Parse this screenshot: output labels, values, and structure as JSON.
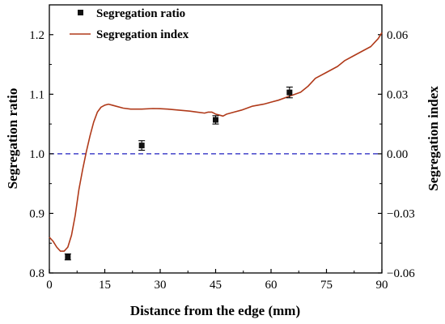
{
  "chart_data": {
    "type": "line",
    "xlabel": "Distance from the edge (mm)",
    "ylabel_left": "Segregation ratio",
    "ylabel_right": "Segregation index",
    "xlim": [
      0,
      90
    ],
    "ylim_left": [
      0.8,
      1.25
    ],
    "ylim_right": [
      -0.06,
      0.075
    ],
    "x_ticks": [
      0,
      15,
      30,
      45,
      60,
      75,
      90
    ],
    "x_tick_labels": [
      "0",
      "15",
      "30",
      "45",
      "60",
      "75",
      "90"
    ],
    "y_left_ticks": [
      0.8,
      0.9,
      1.0,
      1.1,
      1.2
    ],
    "y_left_tick_labels": [
      "0.8",
      "0.9",
      "1.0",
      "1.1",
      "1.2"
    ],
    "y_right_ticks": [
      -0.06,
      -0.03,
      0.0,
      0.03,
      0.06
    ],
    "y_right_tick_labels": [
      "−0.06",
      "−0.03",
      "0.00",
      "0.03",
      "0.06"
    ],
    "grid": false,
    "legend_position": "top-left",
    "reference_line": {
      "axis": "left",
      "value": 1.0,
      "style": "dashed",
      "color": "#1f1fbf"
    },
    "series": [
      {
        "name": "Segregation ratio",
        "kind": "scatter",
        "axis": "left",
        "color": "#111111",
        "marker": "square",
        "points": [
          {
            "x": 5,
            "y": 0.827,
            "err": 0.005
          },
          {
            "x": 25,
            "y": 1.014,
            "err": 0.008
          },
          {
            "x": 45,
            "y": 1.057,
            "err": 0.007
          },
          {
            "x": 65,
            "y": 1.103,
            "err": 0.009
          }
        ]
      },
      {
        "name": "Segregation index",
        "kind": "line",
        "axis": "right",
        "color": "#b03a1a",
        "x": [
          0,
          1,
          2,
          3,
          4,
          5,
          6,
          7,
          8,
          9,
          10,
          11,
          12,
          13,
          14,
          15,
          16,
          17,
          18,
          20,
          22,
          25,
          28,
          30,
          32,
          35,
          38,
          40,
          42,
          43,
          44,
          45,
          46,
          47,
          48,
          50,
          52,
          55,
          58,
          60,
          62,
          65,
          68,
          70,
          72,
          75,
          78,
          80,
          82,
          85,
          87,
          88,
          89,
          90
        ],
        "y": [
          -0.042,
          -0.044,
          -0.047,
          -0.049,
          -0.049,
          -0.047,
          -0.041,
          -0.031,
          -0.018,
          -0.008,
          0.001,
          0.009,
          0.016,
          0.021,
          0.0235,
          0.0245,
          0.025,
          0.0245,
          0.024,
          0.023,
          0.0225,
          0.0225,
          0.0228,
          0.0227,
          0.0225,
          0.022,
          0.0215,
          0.021,
          0.0205,
          0.021,
          0.021,
          0.02,
          0.0195,
          0.019,
          0.02,
          0.021,
          0.022,
          0.024,
          0.025,
          0.026,
          0.027,
          0.029,
          0.031,
          0.034,
          0.038,
          0.041,
          0.044,
          0.047,
          0.049,
          0.052,
          0.054,
          0.056,
          0.058,
          0.061
        ]
      }
    ]
  }
}
